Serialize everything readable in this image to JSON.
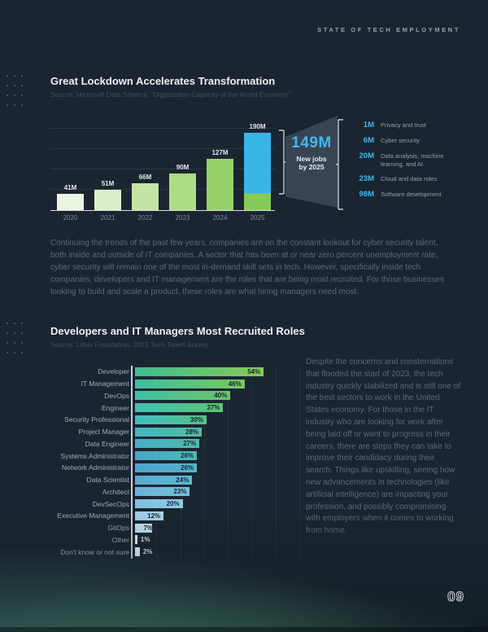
{
  "page": {
    "header": "STATE OF TECH EMPLOYMENT",
    "page_number": "09"
  },
  "section1": {
    "title": "Great Lockdown Accelerates Transformation",
    "source": "Source: Microsoft Data Science, “Digitazation Capacity of the World Economy”",
    "paragraph": "Continuing the trends of the past few years, companies are on the constant lookout for cyber security talent, both inside and outside of IT companies. A sector that has been at or near zero percent unemployment rate, cyber security will remain one of the most in-demand skill sets in tech. However, specifically inside tech companies, developers and IT management are the roles that are being most recruited. For those businesses looking to build and scale a product, these roles are what hiring managers need most."
  },
  "section2": {
    "title": "Developers and IT Managers Most Recruited Roles",
    "source": "Source: Linux Foundation: 2023 Tech Talent Survey",
    "paragraph": "Despite the concerns and consternations that flooded the start of 2023, the tech industry quickly stabilized and is still one of the best sectors to work in the United States economy. For those in the IT industry who are looking for work after being laid off or want to progress in their careers, there are steps they can take to improve their candidacy during their search. Things like upskilling, seeing how new advancements in technologies (like artificial intelligence) are impacting your profession, and possibly compromising with employers when it comes to working from home."
  },
  "chart_data": [
    {
      "type": "bar",
      "title": "Great Lockdown Accelerates Transformation",
      "categories": [
        "2020",
        "2021",
        "2022",
        "2023",
        "2024",
        "2025"
      ],
      "values": [
        41,
        51,
        66,
        90,
        127,
        190
      ],
      "value_labels": [
        "41M",
        "51M",
        "66M",
        "90M",
        "127M",
        "190M"
      ],
      "unit": "M jobs",
      "ylim": [
        0,
        200
      ],
      "gridlines": [
        50,
        100,
        150,
        200
      ],
      "bar_colors": [
        "#eaf4df",
        "#daefc8",
        "#c4e4a5",
        "#addb86",
        "#97d169",
        "#87ca58"
      ],
      "stacked_final_bar": {
        "category": "2025",
        "base_value": 41,
        "highlight_value": 149,
        "highlight_color": "#38b6e8"
      },
      "callout": {
        "value": "149M",
        "line1": "New jobs",
        "line2": "by 2025"
      },
      "legend": [
        {
          "value": "1M",
          "label": "Privacy and trust"
        },
        {
          "value": "6M",
          "label": "Cyber security"
        },
        {
          "value": "20M",
          "label": "Data analysis, machine learning, and AI"
        },
        {
          "value": "23M",
          "label": "Cloud and data roles"
        },
        {
          "value": "98M",
          "label": "Software development"
        }
      ]
    },
    {
      "type": "bar-horizontal",
      "title": "Developers and IT Managers Most Recruited Roles",
      "categories": [
        "Developer",
        "IT Management",
        "DevOps",
        "Engineer",
        "Security Professional",
        "Project Manager",
        "Data Engineer",
        "Systems Administrator",
        "Network Administrator",
        "Data Scientist",
        "Architect",
        "DevSecOps",
        "Executive Management",
        "GitOps",
        "Other",
        "Don't know or not sure"
      ],
      "values": [
        54,
        46,
        40,
        37,
        30,
        28,
        27,
        26,
        26,
        24,
        23,
        20,
        12,
        7,
        1,
        2
      ],
      "unit": "%",
      "xlim": [
        0,
        60
      ],
      "gridline_step": 10,
      "label_inside_min_value": 7,
      "bar_colors": [
        [
          "#3dbd92",
          "#86cb55"
        ],
        [
          "#3ebf9e",
          "#78c85e"
        ],
        [
          "#3fc0a8",
          "#6ac667"
        ],
        [
          "#40c0b3",
          "#5dc472"
        ],
        [
          "#41bdc0",
          "#55c287"
        ],
        [
          "#43b6c5",
          "#50bf9b"
        ],
        [
          "#45aec9",
          "#4dbcab"
        ],
        [
          "#48a8cc",
          "#4dbab8"
        ],
        [
          "#4ba4cf",
          "#54b7c8"
        ],
        [
          "#58aad3",
          "#62bad4"
        ],
        [
          "#68b3d9",
          "#74c2dc"
        ],
        [
          "#7fc0e0",
          "#8ecde5"
        ],
        [
          "#9bcfe9",
          "#abd9ee"
        ],
        [
          "#bfe2f2",
          "#cae8f5"
        ],
        [
          "#e2f1f9",
          "#e8f5fb"
        ],
        [
          "#eef8fc",
          "#f2fafd"
        ]
      ]
    }
  ]
}
